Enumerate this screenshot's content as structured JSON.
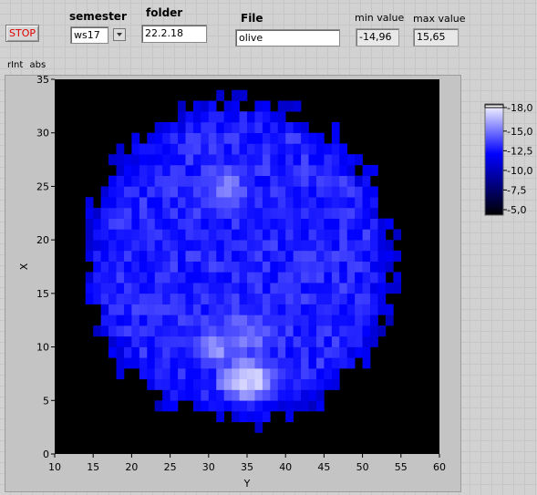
{
  "controls": {
    "stop_label": "STOP",
    "semester_label": "semester",
    "semester_value": "ws17",
    "folder_label": "folder",
    "folder_value": "22.2.18",
    "file_label": "File",
    "file_value": "olive",
    "min_label": "min value",
    "min_value": "-14,96",
    "max_label": "max value",
    "max_value": "15,65"
  },
  "graph": {
    "caption_a": "rInt",
    "caption_b": "abs"
  },
  "colors": {
    "stop_text": "#e00000",
    "plot_bg": "#000000",
    "ramp_low": "#000000",
    "ramp_mid": "#0000ff",
    "ramp_high": "#ffffff"
  },
  "chart_data": {
    "type": "heatmap",
    "xlabel": "Y",
    "ylabel": "X",
    "xlim": [
      10,
      60
    ],
    "ylim": [
      0,
      35
    ],
    "x_ticks": [
      10,
      15,
      20,
      25,
      30,
      35,
      40,
      45,
      50,
      55,
      60
    ],
    "y_ticks": [
      0,
      5,
      10,
      15,
      20,
      25,
      30,
      35
    ],
    "grid": false,
    "colorscale": {
      "min": -5,
      "max": 18,
      "ticks": [
        "-5,0",
        "-7,5",
        "-10,0",
        "-12,5",
        "-15,0",
        "-18,0"
      ],
      "colors": [
        "#000000",
        "#0000ff",
        "#ffffff"
      ]
    },
    "disc": {
      "center_y": 34,
      "center_x": 18,
      "radius_y": 20,
      "radius_x": 15,
      "base_value": 9
    },
    "hotspots": [
      {
        "y": 35,
        "x": 7,
        "peak": 16.5,
        "spread_y": 6,
        "spread_x": 3
      },
      {
        "y": 31,
        "x": 10,
        "peak": 13.5,
        "spread_y": 5,
        "spread_x": 3
      },
      {
        "y": 32,
        "x": 25,
        "peak": 12.5,
        "spread_y": 6,
        "spread_x": 4
      },
      {
        "y": 35,
        "x": 11,
        "peak": 12,
        "spread_y": 8,
        "spread_x": 5
      }
    ]
  }
}
